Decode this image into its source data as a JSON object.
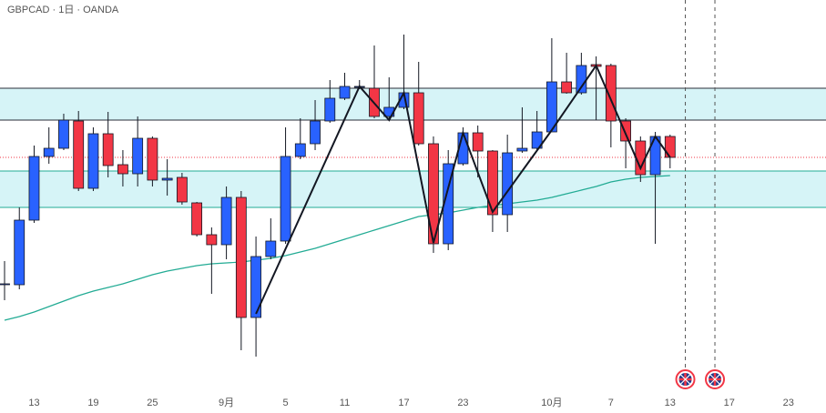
{
  "chart_data": {
    "type": "candlestick",
    "title": "GBPCAD · 1日 · OANDA",
    "categories": [
      null,
      null,
      "13",
      null,
      null,
      null,
      "19",
      null,
      null,
      null,
      "25",
      null,
      null,
      null,
      null,
      "9月",
      null,
      null,
      null,
      "5",
      null,
      null,
      null,
      "11",
      null,
      null,
      null,
      "17",
      null,
      null,
      null,
      "23",
      null,
      null,
      null,
      null,
      null,
      "10月",
      null,
      null,
      null,
      "7",
      null,
      null,
      null,
      "13",
      null,
      null,
      null,
      "17",
      null,
      null,
      null,
      "23",
      null
    ],
    "open": [
      1.7174,
      1.7174,
      1.7316,
      1.7456,
      1.7474,
      1.7534,
      1.7386,
      1.7506,
      1.7438,
      1.7418,
      1.7496,
      1.7404,
      1.741,
      1.7354,
      1.7284,
      1.7262,
      1.7366,
      1.7102,
      1.7236,
      1.727,
      1.7456,
      1.7484,
      1.7534,
      1.7584,
      1.7608,
      1.7606,
      1.7544,
      1.7564,
      1.7596,
      1.7484,
      1.7264,
      1.744,
      1.7508,
      1.7468,
      1.7328,
      1.7468,
      1.7474,
      1.751,
      1.762,
      1.7596,
      1.7658,
      1.7656,
      1.7534,
      1.749,
      1.7416,
      1.75,
      null,
      null,
      null,
      null,
      null,
      null,
      null,
      null,
      null
    ],
    "high": [
      1.7226,
      1.7344,
      1.748,
      1.752,
      1.755,
      1.7556,
      1.752,
      1.7554,
      1.747,
      1.7544,
      1.75,
      1.745,
      1.742,
      1.7356,
      1.73,
      1.739,
      1.738,
      1.728,
      1.732,
      1.752,
      1.754,
      1.758,
      1.7624,
      1.764,
      1.7624,
      1.77,
      1.763,
      1.7724,
      1.7664,
      1.75,
      1.747,
      1.752,
      1.7524,
      1.747,
      1.7504,
      1.7564,
      1.7556,
      1.7716,
      1.7684,
      1.7684,
      1.7676,
      1.766,
      1.754,
      1.75,
      1.751,
      1.7504,
      null,
      null,
      null,
      null,
      null,
      null,
      null,
      null,
      null
    ],
    "low": [
      1.714,
      1.7164,
      1.731,
      1.744,
      1.747,
      1.738,
      1.738,
      1.741,
      1.739,
      1.739,
      1.739,
      1.737,
      1.735,
      1.728,
      1.7154,
      1.723,
      1.703,
      1.7016,
      1.723,
      1.7264,
      1.745,
      1.747,
      1.753,
      1.758,
      1.7604,
      1.754,
      1.754,
      1.756,
      1.748,
      1.7244,
      1.725,
      1.7436,
      1.741,
      1.729,
      1.729,
      1.7464,
      1.747,
      1.751,
      1.7594,
      1.7592,
      1.7536,
      1.7476,
      1.743,
      1.74,
      1.7264,
      1.743,
      null,
      null,
      null,
      null,
      null,
      null,
      null,
      null,
      null
    ],
    "close": [
      1.7176,
      1.7316,
      1.7456,
      1.7474,
      1.7536,
      1.7386,
      1.7506,
      1.7436,
      1.7418,
      1.7496,
      1.7404,
      1.7408,
      1.7356,
      1.7284,
      1.7262,
      1.7366,
      1.7102,
      1.7236,
      1.727,
      1.7456,
      1.7484,
      1.7534,
      1.7584,
      1.761,
      1.761,
      1.7544,
      1.7564,
      1.7596,
      1.7484,
      1.7264,
      1.744,
      1.7508,
      1.7468,
      1.7328,
      1.7464,
      1.7474,
      1.751,
      1.762,
      1.7596,
      1.7656,
      1.7654,
      1.7534,
      1.749,
      1.7416,
      1.75,
      1.7454,
      null,
      null,
      null,
      null,
      null,
      null,
      null,
      null,
      null
    ],
    "up_color": "#2962ff",
    "down_color": "#f23645",
    "ma": {
      "color": "#22ab94",
      "values": [
        1.7096,
        1.7104,
        1.7114,
        1.7126,
        1.7138,
        1.715,
        1.716,
        1.7168,
        1.7176,
        1.7186,
        1.7196,
        1.7204,
        1.721,
        1.7216,
        1.722,
        1.7222,
        1.7224,
        1.7228,
        1.7232,
        1.7238,
        1.7246,
        1.7254,
        1.7264,
        1.7274,
        1.7284,
        1.7294,
        1.7304,
        1.7314,
        1.7324,
        1.7328,
        1.7332,
        1.7338,
        1.7344,
        1.7348,
        1.7352,
        1.7356,
        1.736,
        1.7366,
        1.7374,
        1.7382,
        1.739,
        1.74,
        1.7406,
        1.741,
        1.7412,
        1.7414,
        null,
        null,
        null,
        null,
        null,
        null,
        null,
        null,
        null
      ]
    },
    "zigzag": {
      "color": "#131722",
      "x": [
        17,
        24,
        26,
        27,
        29,
        31,
        33,
        37,
        40,
        43,
        44,
        45
      ],
      "values": [
        1.711,
        1.761,
        1.7536,
        1.7596,
        1.7266,
        1.7508,
        1.7334,
        1.7514,
        1.7656,
        1.743,
        1.75,
        1.7454
      ]
    },
    "zones": [
      {
        "top": 1.7606,
        "bottom": 1.7536,
        "fill": "#d6f4f7",
        "border": "#2a2e39"
      },
      {
        "top": 1.7424,
        "bottom": 1.7344,
        "fill": "#d6f4f7",
        "border": "#22ab94"
      }
    ],
    "price_line": {
      "value": 1.7454,
      "color": "#f23645"
    },
    "event_markers": [
      46,
      48
    ],
    "ylim": [
      1.694,
      1.78
    ]
  }
}
